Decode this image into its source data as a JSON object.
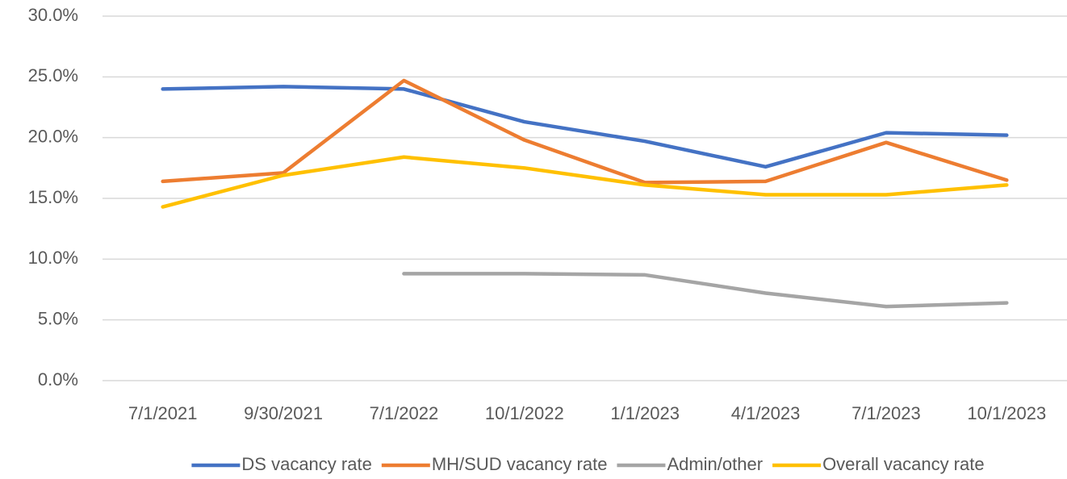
{
  "chart_data": {
    "type": "line",
    "categories": [
      "7/1/2021",
      "9/30/2021",
      "7/1/2022",
      "10/1/2022",
      "1/1/2023",
      "4/1/2023",
      "7/1/2023",
      "10/1/2023"
    ],
    "series": [
      {
        "name": "DS vacancy rate",
        "color": "#4472c4",
        "values": [
          24.0,
          24.2,
          24.0,
          21.3,
          19.7,
          17.6,
          20.4,
          20.2
        ]
      },
      {
        "name": "MH/SUD vacancy rate",
        "color": "#ed7d31",
        "values": [
          16.4,
          17.1,
          24.7,
          19.8,
          16.3,
          16.4,
          19.6,
          16.5
        ]
      },
      {
        "name": "Admin/other",
        "color": "#a5a5a5",
        "values": [
          null,
          null,
          8.8,
          8.8,
          8.7,
          7.2,
          6.1,
          6.4
        ]
      },
      {
        "name": "Overall vacancy rate",
        "color": "#ffc000",
        "values": [
          14.3,
          16.9,
          18.4,
          17.5,
          16.1,
          15.3,
          15.3,
          16.1
        ]
      }
    ],
    "ylim": [
      0,
      30
    ],
    "yticks": [
      {
        "value": 0,
        "label": "0.0%"
      },
      {
        "value": 5,
        "label": "5.0%"
      },
      {
        "value": 10,
        "label": "10.0%"
      },
      {
        "value": 15,
        "label": "15.0%"
      },
      {
        "value": 20,
        "label": "20.0%"
      },
      {
        "value": 25,
        "label": "25.0%"
      },
      {
        "value": 30,
        "label": "30.0%"
      }
    ],
    "grid": true,
    "legend": "bottom"
  }
}
